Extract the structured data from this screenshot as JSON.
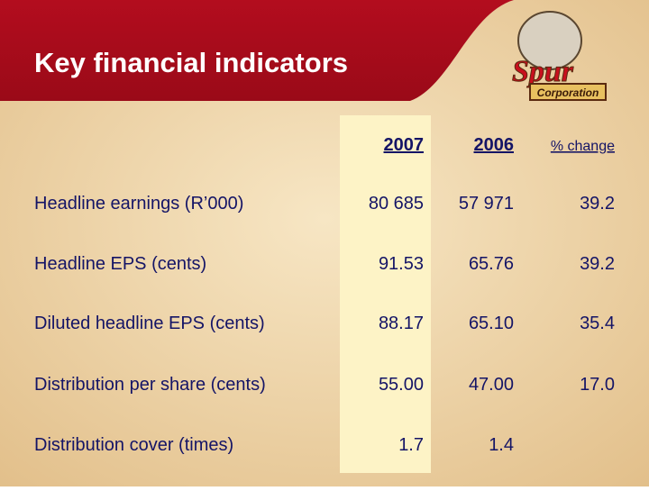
{
  "header": {
    "title": "Key financial indicators"
  },
  "logo": {
    "name": "Spur",
    "subtitle": "Corporation"
  },
  "table": {
    "columns": [
      "2007",
      "2006",
      "% change"
    ],
    "rows": [
      [
        "Headline earnings (R’000)",
        "80 685",
        "57 971",
        "39.2"
      ],
      [
        "Headline EPS (cents)",
        "91.53",
        "65.76",
        "39.2"
      ],
      [
        "Diluted headline EPS (cents)",
        "88.17",
        "65.10",
        "35.4"
      ],
      [
        "Distribution per share (cents)",
        "55.00",
        "47.00",
        "17.0"
      ],
      [
        "Distribution cover (times)",
        "1.7",
        "1.4"
      ]
    ]
  }
}
